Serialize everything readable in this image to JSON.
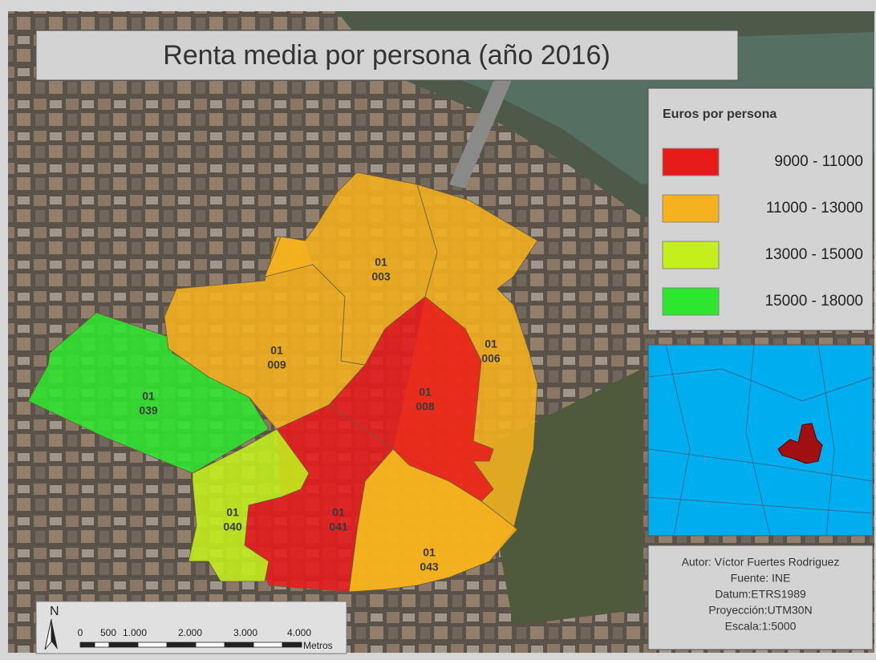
{
  "title": "Renta media por persona (año 2016)",
  "legend": {
    "title": "Euros por persona",
    "items": [
      {
        "label": "9000 - 11000",
        "color": "#e81b1b"
      },
      {
        "label": "11000 - 13000",
        "color": "#f5b21e"
      },
      {
        "label": "13000 - 15000",
        "color": "#c3f01c"
      },
      {
        "label": "15000 - 18000",
        "color": "#2de62f"
      }
    ]
  },
  "districts": [
    {
      "lines": [
        "01",
        "039"
      ],
      "color": "#2de62f"
    },
    {
      "lines": [
        "01",
        "009"
      ],
      "color": "#f5b21e"
    },
    {
      "lines": [
        "01",
        "003"
      ],
      "color": "#f5b21e"
    },
    {
      "lines": [
        "01",
        "006"
      ],
      "color": "#f5b21e"
    },
    {
      "lines": [
        "01",
        "043"
      ],
      "color": "#f5b21e"
    },
    {
      "lines": [
        "01",
        "008"
      ],
      "color": "#e81b1b"
    },
    {
      "lines": [
        "01",
        "041"
      ],
      "color": "#e81b1b"
    },
    {
      "lines": [
        "01",
        "040"
      ],
      "color": "#c3f01c"
    }
  ],
  "credits": [
    "Autor: Víctor Fuertes Rodriguez",
    "Fuente: INE",
    "Datum:ETRS1989",
    "Proyección:UTM30N",
    "Escala:1:5000"
  ],
  "scale_bar": {
    "labels": [
      "0",
      "500",
      "1.000",
      "2.000",
      "3.000",
      "4.000"
    ],
    "unit": "Metros"
  },
  "north": "N"
}
